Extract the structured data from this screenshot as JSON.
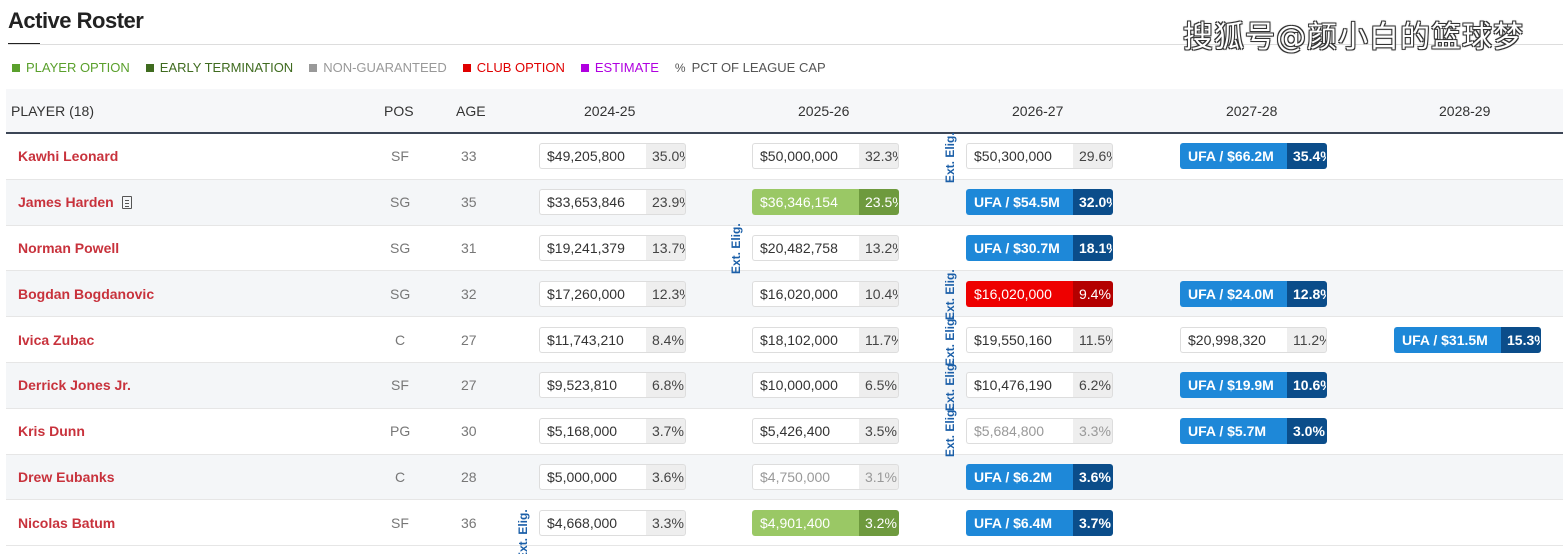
{
  "title": "Active Roster",
  "watermark": "搜狐号@颜小白的篮球梦",
  "legend": [
    {
      "label": "PLAYER OPTION",
      "color": "#5aa02c"
    },
    {
      "label": "EARLY TERMINATION",
      "color": "#3f6b1f"
    },
    {
      "label": "NON-GUARANTEED",
      "color": "#999999"
    },
    {
      "label": "CLUB OPTION",
      "color": "#e00000"
    },
    {
      "label": "ESTIMATE",
      "color": "#b000e0"
    },
    {
      "label": "PCT OF LEAGUE CAP",
      "color": "#555555",
      "icon": "percent-icon"
    }
  ],
  "headers": {
    "player": "PLAYER (18)",
    "pos": "POS",
    "age": "AGE",
    "years": [
      "2024-25",
      "2025-26",
      "2026-27",
      "2027-28",
      "2028-29"
    ]
  },
  "ext_label": "Ext. Elig.",
  "rows": [
    {
      "name": "Kawhi Leonard",
      "pos": "SF",
      "age": "33",
      "salaries": [
        {
          "amt": "$49,205,800",
          "pct": "35.0%"
        },
        {
          "amt": "$50,000,000",
          "pct": "32.3%"
        },
        {
          "amt": "$50,300,000",
          "pct": "29.6%"
        },
        {
          "amt": "UFA / $66.2M",
          "pct": "35.4%",
          "type": "ufa"
        },
        null
      ]
    },
    {
      "name": "James Harden",
      "pos": "SG",
      "age": "35",
      "note_icon": true,
      "salaries": [
        {
          "amt": "$33,653,846",
          "pct": "23.9%"
        },
        {
          "amt": "$36,346,154",
          "pct": "23.5%",
          "type": "player"
        },
        {
          "amt": "UFA / $54.5M",
          "pct": "32.0%",
          "type": "ufa"
        },
        null,
        null
      ]
    },
    {
      "name": "Norman Powell",
      "pos": "SG",
      "age": "31",
      "salaries": [
        {
          "amt": "$19,241,379",
          "pct": "13.7%"
        },
        {
          "amt": "$20,482,758",
          "pct": "13.2%"
        },
        {
          "amt": "UFA / $30.7M",
          "pct": "18.1%",
          "type": "ufa"
        },
        null,
        null
      ]
    },
    {
      "name": "Bogdan Bogdanovic",
      "pos": "SG",
      "age": "32",
      "salaries": [
        {
          "amt": "$17,260,000",
          "pct": "12.3%"
        },
        {
          "amt": "$16,020,000",
          "pct": "10.4%"
        },
        {
          "amt": "$16,020,000",
          "pct": "9.4%",
          "type": "club"
        },
        {
          "amt": "UFA / $24.0M",
          "pct": "12.8%",
          "type": "ufa"
        },
        null
      ]
    },
    {
      "name": "Ivica Zubac",
      "pos": "C",
      "age": "27",
      "salaries": [
        {
          "amt": "$11,743,210",
          "pct": "8.4%"
        },
        {
          "amt": "$18,102,000",
          "pct": "11.7%"
        },
        {
          "amt": "$19,550,160",
          "pct": "11.5%"
        },
        {
          "amt": "$20,998,320",
          "pct": "11.2%"
        },
        {
          "amt": "UFA / $31.5M",
          "pct": "15.3%",
          "type": "ufa"
        }
      ]
    },
    {
      "name": "Derrick Jones Jr.",
      "pos": "SF",
      "age": "27",
      "salaries": [
        {
          "amt": "$9,523,810",
          "pct": "6.8%"
        },
        {
          "amt": "$10,000,000",
          "pct": "6.5%"
        },
        {
          "amt": "$10,476,190",
          "pct": "6.2%"
        },
        {
          "amt": "UFA / $19.9M",
          "pct": "10.6%",
          "type": "ufa"
        },
        null
      ]
    },
    {
      "name": "Kris Dunn",
      "pos": "PG",
      "age": "30",
      "salaries": [
        {
          "amt": "$5,168,000",
          "pct": "3.7%"
        },
        {
          "amt": "$5,426,400",
          "pct": "3.5%"
        },
        {
          "amt": "$5,684,800",
          "pct": "3.3%",
          "type": "ng"
        },
        {
          "amt": "UFA / $5.7M",
          "pct": "3.0%",
          "type": "ufa"
        },
        null
      ]
    },
    {
      "name": "Drew Eubanks",
      "pos": "C",
      "age": "28",
      "salaries": [
        {
          "amt": "$5,000,000",
          "pct": "3.6%"
        },
        {
          "amt": "$4,750,000",
          "pct": "3.1%",
          "type": "ng"
        },
        {
          "amt": "UFA / $6.2M",
          "pct": "3.6%",
          "type": "ufa"
        },
        null,
        null
      ]
    },
    {
      "name": "Nicolas Batum",
      "pos": "SF",
      "age": "36",
      "salaries": [
        {
          "amt": "$4,668,000",
          "pct": "3.3%"
        },
        {
          "amt": "$4,901,400",
          "pct": "3.2%",
          "type": "player"
        },
        {
          "amt": "UFA / $6.4M",
          "pct": "3.7%",
          "type": "ufa"
        },
        null,
        null
      ]
    }
  ]
}
